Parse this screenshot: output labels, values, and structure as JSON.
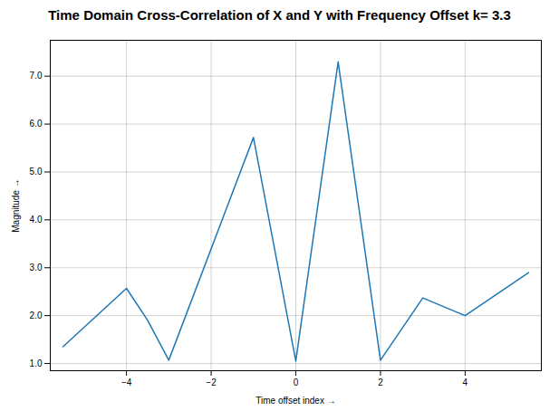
{
  "chart_data": {
    "type": "line",
    "title": "Time Domain Cross-Correlation of X and Y with Frequency Offset k= 3.3",
    "xlabel": "Time offset index",
    "ylabel": "Magnitude",
    "x": [
      -5.5,
      -4,
      -3.5,
      -3,
      -1,
      0,
      1,
      2,
      3,
      4,
      5.5
    ],
    "values": [
      1.35,
      2.57,
      1.9,
      1.07,
      5.72,
      1.05,
      7.3,
      1.07,
      2.37,
      2.0,
      2.9
    ],
    "color": "#1f77b4",
    "xlim": [
      -5.8,
      5.8
    ],
    "ylim": [
      0.85,
      7.75
    ],
    "xticks": [
      -4,
      -2,
      0,
      2,
      4
    ],
    "yticks": [
      1,
      2,
      3,
      4,
      5,
      6,
      7
    ],
    "grid": true
  }
}
